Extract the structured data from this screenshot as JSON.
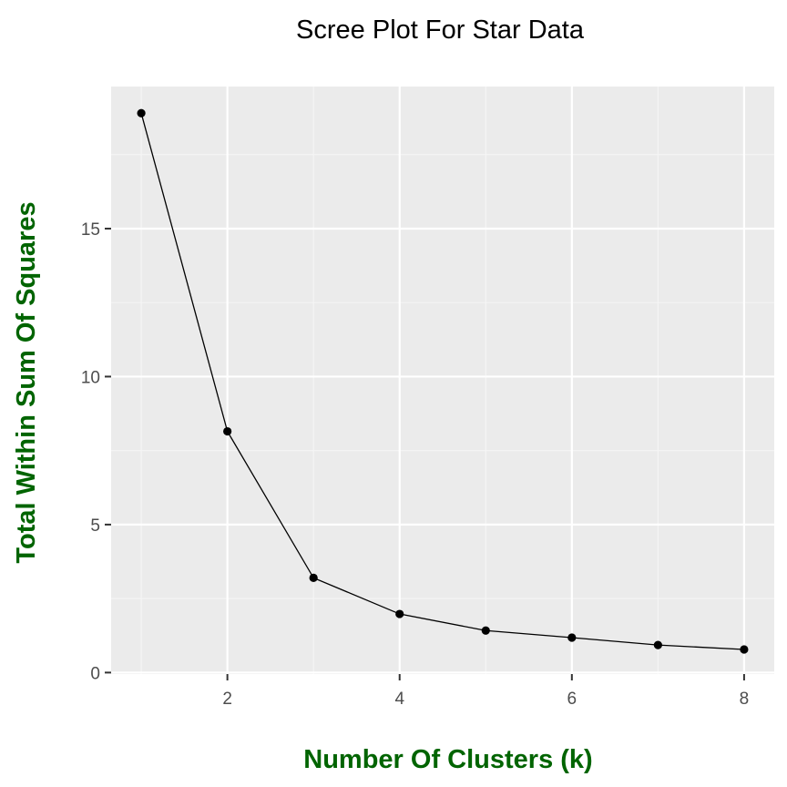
{
  "chart_data": {
    "type": "line",
    "title": "Scree Plot For Star Data",
    "xlabel": "Number Of Clusters (k)",
    "ylabel": "Total Within Sum Of Squares",
    "x": [
      1,
      2,
      3,
      4,
      5,
      6,
      7,
      8
    ],
    "series": [
      {
        "values": [
          18.9,
          8.15,
          3.2,
          1.98,
          1.42,
          1.18,
          0.93,
          0.78
        ]
      }
    ],
    "xlim": [
      0.65,
      8.35
    ],
    "ylim": [
      -0.05,
      19.8
    ],
    "xticks": [
      2,
      4,
      6,
      8
    ],
    "yticks": [
      0,
      5,
      10,
      15
    ],
    "xtick_labels": [
      "2",
      "4",
      "6",
      "8"
    ],
    "ytick_labels": [
      "0",
      "5",
      "10",
      "15"
    ],
    "grid": true,
    "colors": {
      "panel_background": "#ebebeb",
      "grid_major": "#ffffff",
      "grid_minor": "#f5f5f5",
      "line": "#000000",
      "point": "#000000",
      "axis_title": "#006400",
      "tick_label": "#4d4d4d",
      "title": "#000000"
    }
  }
}
